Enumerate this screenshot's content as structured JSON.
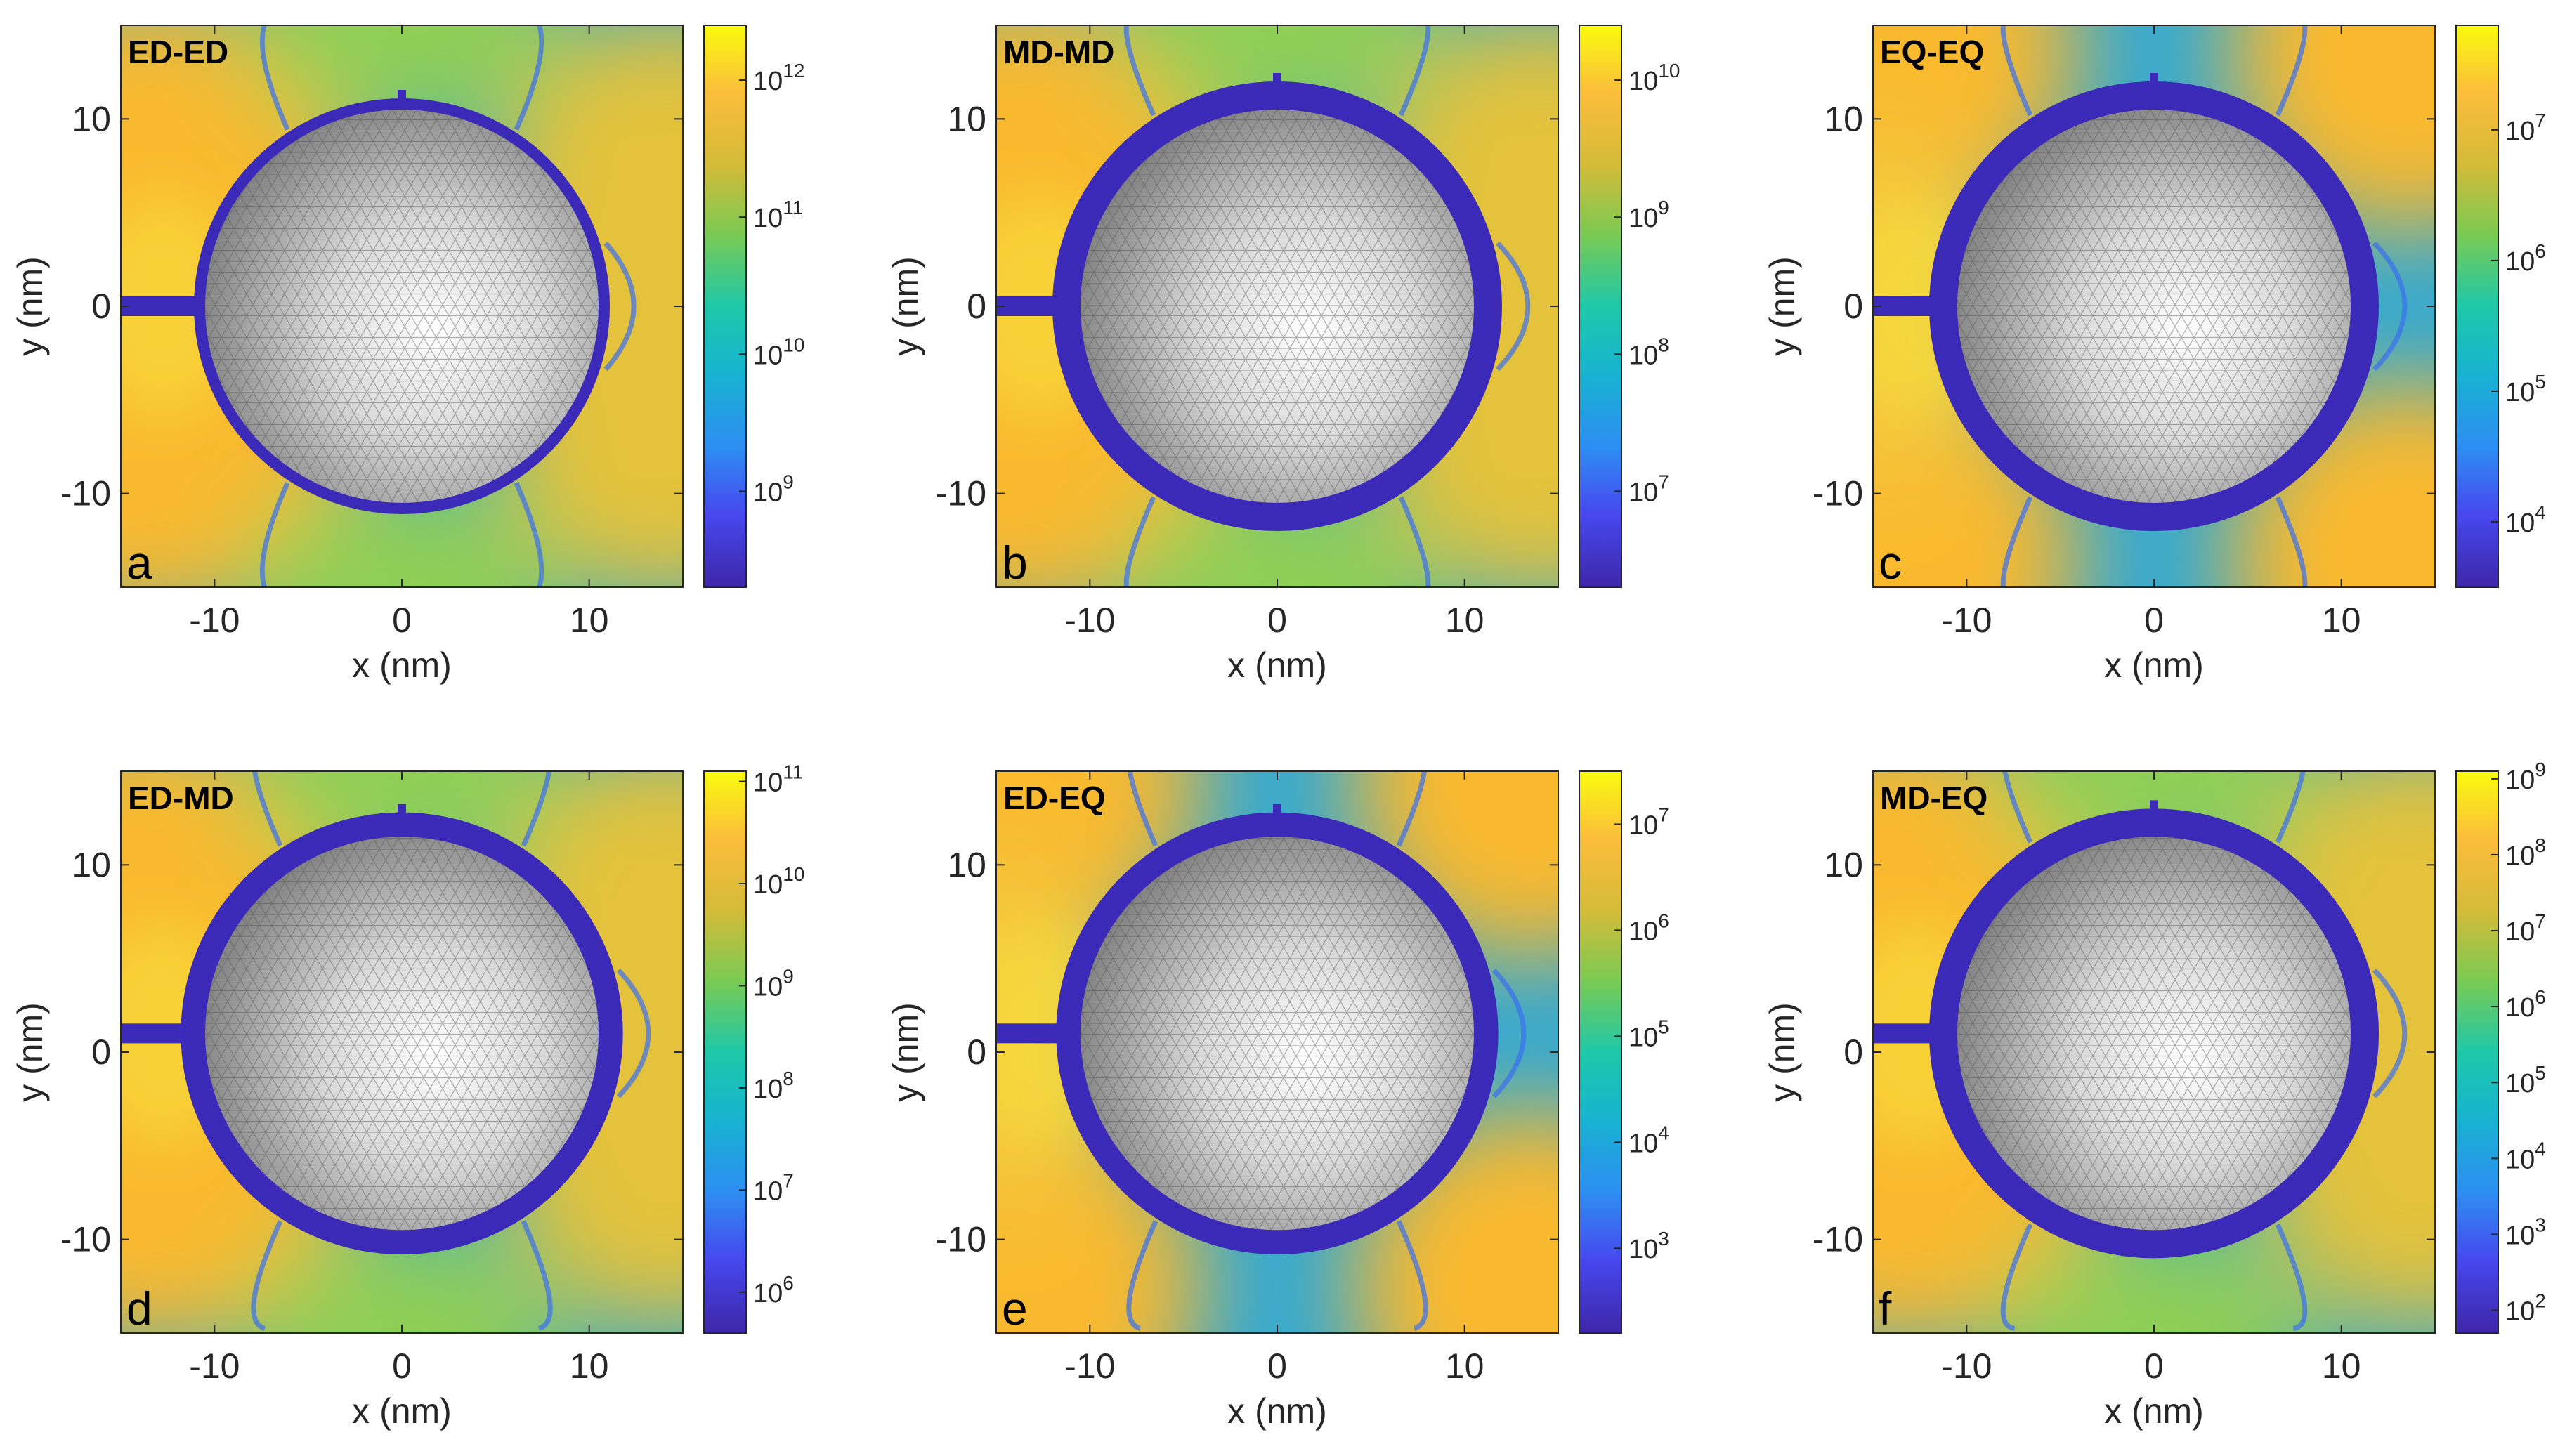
{
  "chart_data": [
    {
      "type": "heatmap",
      "title": "ED-ED",
      "panel_label": "a",
      "xlabel": "x (nm)",
      "ylabel": "y (nm)",
      "xlim": [
        -15,
        15
      ],
      "ylim": [
        -15,
        15
      ],
      "xticks": [
        -10,
        0,
        10
      ],
      "yticks": [
        -10,
        0,
        10
      ],
      "xtick_labels": [
        "-10",
        "0",
        "10"
      ],
      "ytick_labels": [
        "-10",
        "0",
        "10"
      ],
      "colorbar": {
        "scale": "log",
        "range_exp": [
          8.3,
          12.4
        ],
        "ticks": [
          {
            "base": "10",
            "exp": "9"
          },
          {
            "base": "10",
            "exp": "10"
          },
          {
            "base": "10",
            "exp": "11"
          },
          {
            "base": "10",
            "exp": "12"
          }
        ]
      },
      "sphere_radius": 10.5,
      "shell_outer_radius": 11.1,
      "lobes": "lr",
      "center_x": 0,
      "center_y": 0
    },
    {
      "type": "heatmap",
      "title": "MD-MD",
      "panel_label": "b",
      "xlabel": "x (nm)",
      "ylabel": "y (nm)",
      "xlim": [
        -15,
        15
      ],
      "ylim": [
        -15,
        15
      ],
      "xticks": [
        -10,
        0,
        10
      ],
      "yticks": [
        -10,
        0,
        10
      ],
      "xtick_labels": [
        "-10",
        "0",
        "10"
      ],
      "ytick_labels": [
        "-10",
        "0",
        "10"
      ],
      "colorbar": {
        "scale": "log",
        "range_exp": [
          6.3,
          10.4
        ],
        "ticks": [
          {
            "base": "10",
            "exp": "7"
          },
          {
            "base": "10",
            "exp": "8"
          },
          {
            "base": "10",
            "exp": "9"
          },
          {
            "base": "10",
            "exp": "10"
          }
        ]
      },
      "sphere_radius": 10.5,
      "shell_outer_radius": 12.0,
      "lobes": "lr",
      "center_x": 0,
      "center_y": 0
    },
    {
      "type": "heatmap",
      "title": "EQ-EQ",
      "panel_label": "c",
      "xlabel": "x (nm)",
      "ylabel": "y (nm)",
      "xlim": [
        -15,
        15
      ],
      "ylim": [
        -15,
        15
      ],
      "xticks": [
        -10,
        0,
        10
      ],
      "yticks": [
        -10,
        0,
        10
      ],
      "xtick_labels": [
        "-10",
        "0",
        "10"
      ],
      "ytick_labels": [
        "-10",
        "0",
        "10"
      ],
      "colorbar": {
        "scale": "log",
        "range_exp": [
          3.5,
          7.8
        ],
        "ticks": [
          {
            "base": "10",
            "exp": "4"
          },
          {
            "base": "10",
            "exp": "5"
          },
          {
            "base": "10",
            "exp": "6"
          },
          {
            "base": "10",
            "exp": "7"
          }
        ]
      },
      "sphere_radius": 10.5,
      "shell_outer_radius": 12.0,
      "lobes": "diag",
      "center_x": 0,
      "center_y": 0
    },
    {
      "type": "heatmap",
      "title": "ED-MD",
      "panel_label": "d",
      "xlabel": "x (nm)",
      "ylabel": "y (nm)",
      "xlim": [
        -15,
        15
      ],
      "ylim": [
        -15,
        15
      ],
      "xticks": [
        -10,
        0,
        10
      ],
      "yticks": [
        -10,
        0,
        10
      ],
      "xtick_labels": [
        "-10",
        "0",
        "10"
      ],
      "ytick_labels": [
        "-10",
        "0",
        "10"
      ],
      "colorbar": {
        "scale": "log",
        "range_exp": [
          5.6,
          11.1
        ],
        "ticks": [
          {
            "base": "10",
            "exp": "6"
          },
          {
            "base": "10",
            "exp": "7"
          },
          {
            "base": "10",
            "exp": "8"
          },
          {
            "base": "10",
            "exp": "9"
          },
          {
            "base": "10",
            "exp": "10"
          },
          {
            "base": "10",
            "exp": "11"
          }
        ]
      },
      "sphere_radius": 10.5,
      "shell_outer_radius": 11.8,
      "lobes": "lr",
      "center_x": 0,
      "center_y": 1.0
    },
    {
      "type": "heatmap",
      "title": "ED-EQ",
      "panel_label": "e",
      "xlabel": "x (nm)",
      "ylabel": "y (nm)",
      "xlim": [
        -15,
        15
      ],
      "ylim": [
        -15,
        15
      ],
      "xticks": [
        -10,
        0,
        10
      ],
      "yticks": [
        -10,
        0,
        10
      ],
      "xtick_labels": [
        "-10",
        "0",
        "10"
      ],
      "ytick_labels": [
        "-10",
        "0",
        "10"
      ],
      "colorbar": {
        "scale": "log",
        "range_exp": [
          2.2,
          7.5
        ],
        "ticks": [
          {
            "base": "10",
            "exp": "3"
          },
          {
            "base": "10",
            "exp": "4"
          },
          {
            "base": "10",
            "exp": "5"
          },
          {
            "base": "10",
            "exp": "6"
          },
          {
            "base": "10",
            "exp": "7"
          }
        ]
      },
      "sphere_radius": 10.5,
      "shell_outer_radius": 11.8,
      "lobes": "diag",
      "center_x": 0,
      "center_y": 1.0
    },
    {
      "type": "heatmap",
      "title": "MD-EQ",
      "panel_label": "f",
      "xlabel": "x (nm)",
      "ylabel": "y (nm)",
      "xlim": [
        -15,
        15
      ],
      "ylim": [
        -15,
        15
      ],
      "xticks": [
        -10,
        0,
        10
      ],
      "yticks": [
        -10,
        0,
        10
      ],
      "xtick_labels": [
        "-10",
        "0",
        "10"
      ],
      "ytick_labels": [
        "-10",
        "0",
        "10"
      ],
      "colorbar": {
        "scale": "log",
        "range_exp": [
          1.7,
          9.1
        ],
        "ticks": [
          {
            "base": "10",
            "exp": "2"
          },
          {
            "base": "10",
            "exp": "3"
          },
          {
            "base": "10",
            "exp": "4"
          },
          {
            "base": "10",
            "exp": "5"
          },
          {
            "base": "10",
            "exp": "6"
          },
          {
            "base": "10",
            "exp": "7"
          },
          {
            "base": "10",
            "exp": "8"
          },
          {
            "base": "10",
            "exp": "9"
          }
        ]
      },
      "sphere_radius": 10.5,
      "shell_outer_radius": 12.0,
      "lobes": "lr",
      "center_x": 0,
      "center_y": 1.0
    }
  ]
}
